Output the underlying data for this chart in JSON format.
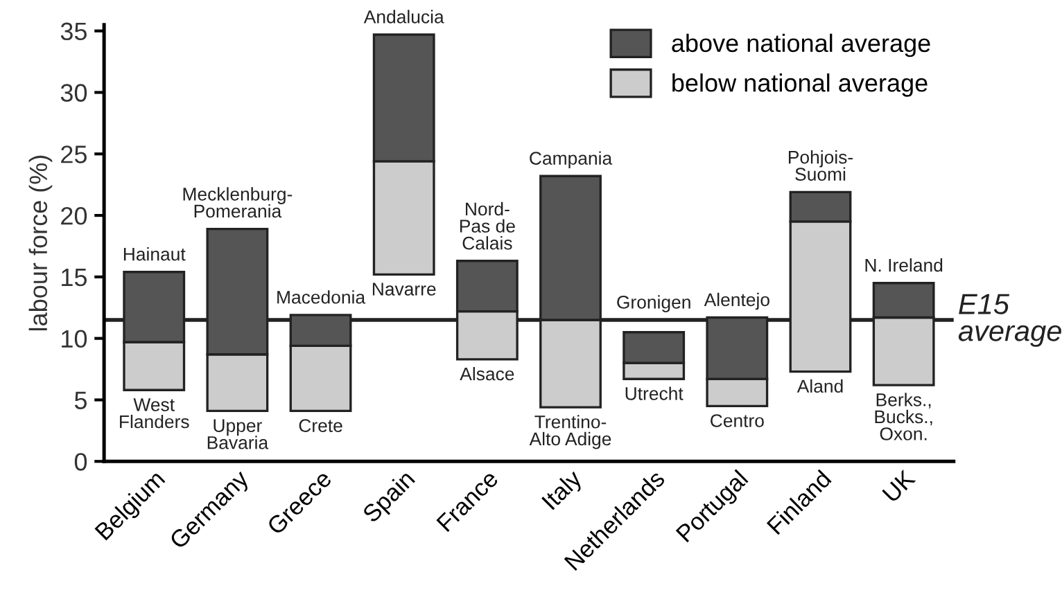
{
  "chart_data": {
    "type": "bar",
    "ylabel": "labour force (%)",
    "categories": [
      "Belgium",
      "Germany",
      "Greece",
      "Spain",
      "France",
      "Italy",
      "Netherlands",
      "Portugal",
      "Finland",
      "UK"
    ],
    "series": [
      {
        "name": "below national average",
        "color": "#cccccc",
        "base": [
          5.8,
          4.1,
          4.1,
          15.2,
          8.3,
          4.4,
          6.7,
          4.5,
          7.3,
          6.2
        ],
        "values": [
          3.9,
          4.6,
          5.3,
          9.2,
          3.9,
          7.1,
          1.3,
          2.2,
          12.2,
          5.5
        ]
      },
      {
        "name": "above national average",
        "color": "#555555",
        "base": [
          9.7,
          8.7,
          9.4,
          24.4,
          12.2,
          11.5,
          8.0,
          6.7,
          19.5,
          11.7
        ],
        "values": [
          5.7,
          10.2,
          2.5,
          10.3,
          4.1,
          11.7,
          2.5,
          5.0,
          2.4,
          2.8
        ]
      }
    ],
    "ylim": [
      0,
      35.5
    ],
    "yticks": [
      0,
      5,
      10,
      15,
      20,
      25,
      30,
      35
    ],
    "ref_lines": [
      {
        "axis": "y",
        "value": 11.5,
        "label": "E15\naverage",
        "color": "#222222"
      }
    ],
    "annotations": [
      {
        "text": "Hainaut",
        "x": "Belgium",
        "y": 15.4
      },
      {
        "text": "West\nFlanders",
        "x": "Belgium",
        "y": 5.8
      },
      {
        "text": "Mecklenburg-\nPomerania",
        "x": "Germany",
        "y": 18.9
      },
      {
        "text": "Upper\nBavaria",
        "x": "Germany",
        "y": 4.1
      },
      {
        "text": "Macedonia",
        "x": "Greece",
        "y": 11.9
      },
      {
        "text": "Crete",
        "x": "Greece",
        "y": 4.1
      },
      {
        "text": "Andalucia",
        "x": "Spain",
        "y": 34.7
      },
      {
        "text": "Navarre",
        "x": "Spain",
        "y": 15.2
      },
      {
        "text": "Nord-\nPas de\nCalais",
        "x": "France",
        "y": 16.3
      },
      {
        "text": "Alsace",
        "x": "France",
        "y": 8.3
      },
      {
        "text": "Campania",
        "x": "Italy",
        "y": 23.2
      },
      {
        "text": "Trentino-\nAlto Adige",
        "x": "Italy",
        "y": 4.4
      },
      {
        "text": "Gronigen",
        "x": "Netherlands",
        "y": 10.5
      },
      {
        "text": "Utrecht",
        "x": "Netherlands",
        "y": 6.7
      },
      {
        "text": "Alentejo",
        "x": "Portugal",
        "y": 11.7
      },
      {
        "text": "Centro",
        "x": "Portugal",
        "y": 4.5
      },
      {
        "text": "Pohjois-\nSuomi",
        "x": "Finland",
        "y": 21.9
      },
      {
        "text": "Aland",
        "x": "Finland",
        "y": 7.3
      },
      {
        "text": "N. Ireland",
        "x": "UK",
        "y": 14.5
      },
      {
        "text": "Berks.,\nBucks.,\nOxon.",
        "x": "UK",
        "y": 6.2
      }
    ],
    "legend": "top right",
    "grid": false
  }
}
